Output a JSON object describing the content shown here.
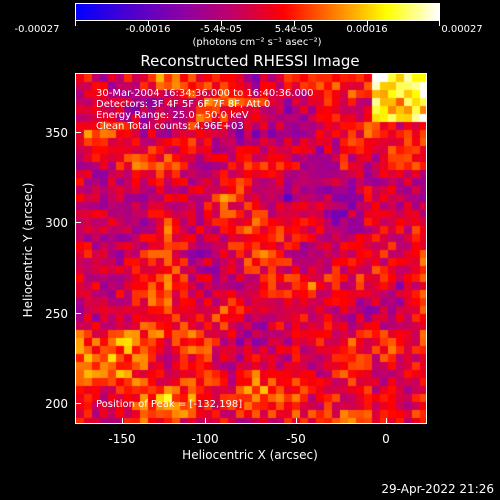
{
  "colorbar": {
    "labels": [
      "-0.00027",
      "-0.00016",
      "-5.4e-05",
      "5.4e-05",
      "0.00016",
      "0.00027"
    ],
    "units": "(photons cm⁻² s⁻¹ asec⁻²)",
    "gradient": [
      "#0000ff",
      "#4b00d0",
      "#8a00a8",
      "#c0006a",
      "#ff0000",
      "#ff8000",
      "#ffff00",
      "#ffffff"
    ]
  },
  "title": "Reconstructed RHESSI Image",
  "info": {
    "line1": "30-Mar-2004 16:34:36.000 to 16:40:36.000",
    "line2": "Detectors: 3F 4F 5F 6F 7F 8F, Att 0",
    "line3": "Energy Range: 25.0 - 50.0 keV",
    "line4": "Clean     Total counts: 4.96E+03"
  },
  "peak_text": "Position of Peak = [-132,198]",
  "axes": {
    "x_title": "Heliocentric X (arcsec)",
    "y_title": "Heliocentric Y (arcsec)",
    "x_ticks": [
      "-150",
      "-100",
      "-50",
      "0"
    ],
    "y_ticks": [
      "200",
      "250",
      "300",
      "350"
    ]
  },
  "timestamp": "29-Apr-2022 21:26"
}
